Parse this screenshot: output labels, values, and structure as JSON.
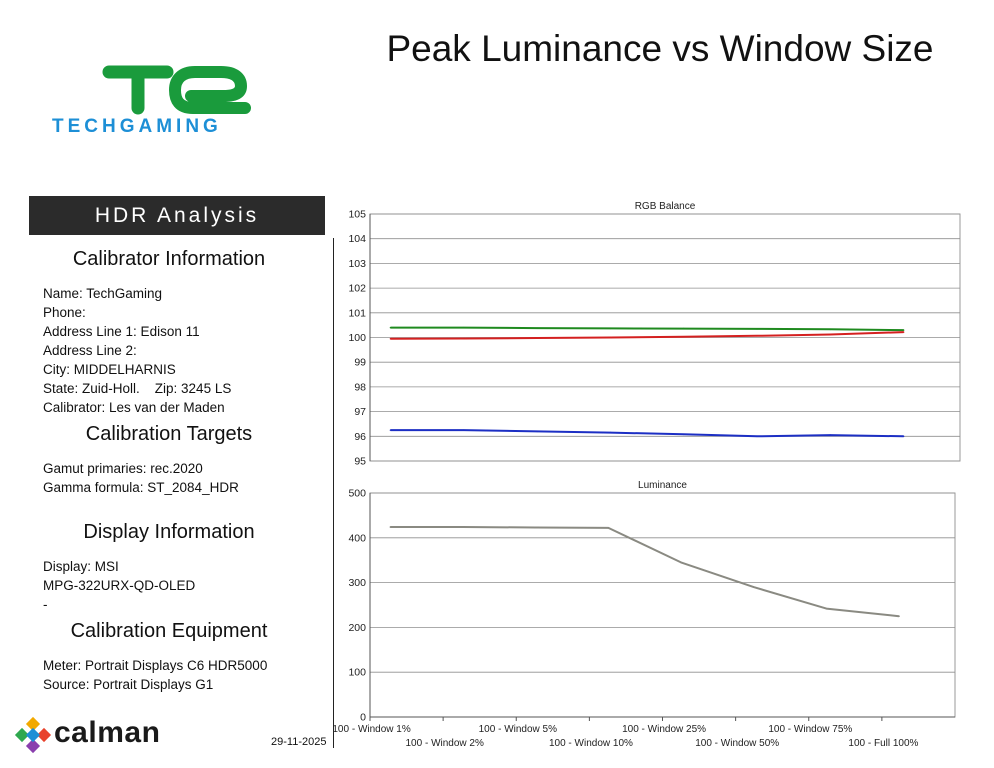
{
  "header": {
    "title": "Peak Luminance vs Window Size"
  },
  "logo": {
    "wordmark": "TECHGAMING",
    "brand_color": "#1d8fd6",
    "mark_color": "#1a9b3c"
  },
  "banner": {
    "label": "HDR Analysis"
  },
  "calibrator": {
    "heading": "Calibrator Information",
    "name": "Name: TechGaming",
    "phone": "Phone:",
    "address1": "Address Line 1: Edison 11",
    "address2": "Address Line 2:",
    "city": "City: MIDDELHARNIS",
    "state_zip": "State: Zuid-Holl.    Zip: 3245 LS",
    "calibrator": "Calibrator: Les van der Maden"
  },
  "targets": {
    "heading": "Calibration Targets",
    "gamut": "Gamut primaries: rec.2020",
    "gamma": "Gamma formula: ST_2084_HDR"
  },
  "display": {
    "heading": "Display Information",
    "line1": "Display: MSI",
    "line2": "MPG-322URX-QD-OLED",
    "line3": "-"
  },
  "equipment": {
    "heading": "Calibration Equipment",
    "meter": "Meter: Portrait Displays C6 HDR5000",
    "source": "Source: Portrait Displays G1"
  },
  "footer": {
    "date": "29-11-2025",
    "brand": "calman"
  },
  "chart_data": [
    {
      "type": "line",
      "title": "RGB Balance",
      "ylim": [
        95,
        105
      ],
      "yticks": [
        95,
        96,
        97,
        98,
        99,
        100,
        101,
        102,
        103,
        104,
        105
      ],
      "grid": true,
      "categories": [
        "100 - Window  1%",
        "100 - Window  2%",
        "100 - Window  5%",
        "100 - Window 10%",
        "100 - Window 25%",
        "100 - Window 50%",
        "100 - Window 75%",
        "100 - Full  100%"
      ],
      "series": [
        {
          "name": "Green",
          "color": "#1f8a1f",
          "values": [
            100.4,
            100.4,
            100.38,
            100.37,
            100.36,
            100.35,
            100.33,
            100.3
          ]
        },
        {
          "name": "Red",
          "color": "#d42020",
          "values": [
            99.95,
            99.96,
            99.98,
            100.0,
            100.03,
            100.07,
            100.12,
            100.22
          ]
        },
        {
          "name": "Blue",
          "color": "#1c2fc4",
          "values": [
            96.25,
            96.25,
            96.2,
            96.15,
            96.08,
            96.0,
            96.05,
            96.0
          ]
        }
      ]
    },
    {
      "type": "line",
      "title": "Luminance",
      "ylim": [
        0,
        500
      ],
      "yticks": [
        0,
        100,
        200,
        300,
        400,
        500
      ],
      "grid": true,
      "categories": [
        "100 - Window  1%",
        "100 - Window  2%",
        "100 - Window  5%",
        "100 - Window 10%",
        "100 - Window 25%",
        "100 - Window 50%",
        "100 - Window 75%",
        "100 - Full  100%"
      ],
      "series": [
        {
          "name": "Luminance",
          "color": "#8a8a82",
          "values": [
            424,
            424,
            423,
            422,
            345,
            290,
            242,
            225
          ]
        }
      ]
    }
  ]
}
